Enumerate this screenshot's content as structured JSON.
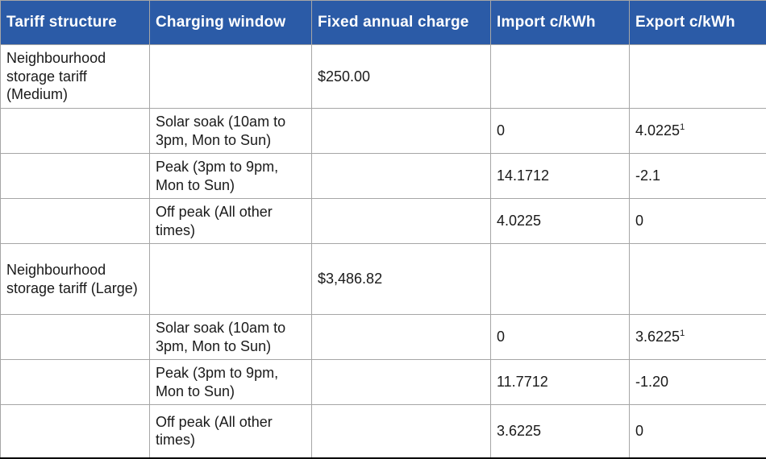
{
  "colors": {
    "header_background": "#2b5ba7",
    "header_text": "#ffffff",
    "grid_line": "#a6a6a6",
    "table_bottom_border": "#000000",
    "body_text": "#1a1a1a"
  },
  "table": {
    "headers": [
      "Tariff structure",
      "Charging window",
      "Fixed annual charge",
      "Import c/kWh",
      "Export c/kWh"
    ],
    "rows": [
      {
        "tariff_structure": "Neighbourhood storage tariff (Medium)",
        "charging_window": "",
        "fixed_annual_charge": "$250.00",
        "import_c_kwh": "",
        "export_c_kwh": "",
        "export_superscript": ""
      },
      {
        "tariff_structure": "",
        "charging_window": "Solar soak (10am to 3pm, Mon to Sun)",
        "fixed_annual_charge": "",
        "import_c_kwh": "0",
        "export_c_kwh": "4.0225",
        "export_superscript": "1"
      },
      {
        "tariff_structure": "",
        "charging_window": "Peak (3pm to 9pm, Mon to Sun)",
        "fixed_annual_charge": "",
        "import_c_kwh": "14.1712",
        "export_c_kwh": "-2.1",
        "export_superscript": ""
      },
      {
        "tariff_structure": "",
        "charging_window": "Off peak (All other times)",
        "fixed_annual_charge": "",
        "import_c_kwh": "4.0225",
        "export_c_kwh": "0",
        "export_superscript": ""
      },
      {
        "tariff_structure": "Neighbourhood storage tariff (Large)",
        "charging_window": "",
        "fixed_annual_charge": "$3,486.82",
        "import_c_kwh": "",
        "export_c_kwh": "",
        "export_superscript": ""
      },
      {
        "tariff_structure": "",
        "charging_window": "Solar soak (10am to 3pm, Mon to Sun)",
        "fixed_annual_charge": "",
        "import_c_kwh": "0",
        "export_c_kwh": "3.6225",
        "export_superscript": "1"
      },
      {
        "tariff_structure": "",
        "charging_window": "Peak (3pm to 9pm, Mon to Sun)",
        "fixed_annual_charge": "",
        "import_c_kwh": "11.7712",
        "export_c_kwh": "-1.20",
        "export_superscript": ""
      },
      {
        "tariff_structure": "",
        "charging_window": "Off peak (All other times)",
        "fixed_annual_charge": "",
        "import_c_kwh": "3.6225",
        "export_c_kwh": "0",
        "export_superscript": ""
      }
    ]
  }
}
